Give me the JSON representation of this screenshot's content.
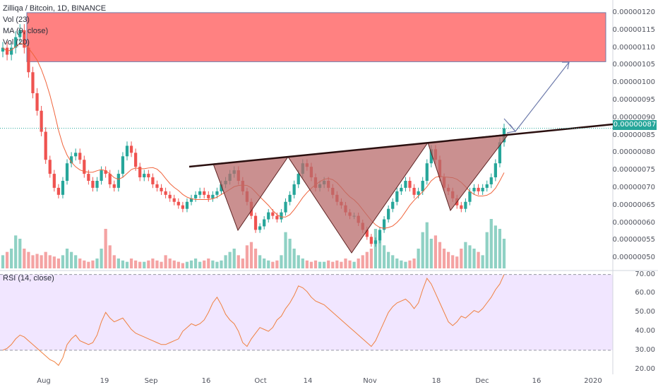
{
  "legend": {
    "symbol": "Zilliqa / Bitcoin, 1D, BINANCE",
    "vol": "Vol (23)",
    "ma": "MA (9, close)",
    "vol2": "Vol (20)",
    "rsi": "RSI (14, close)"
  },
  "last_price": "0.00000087",
  "colors": {
    "up": "#26a69a",
    "down": "#ef5350",
    "vol_up": "#8fd1c4",
    "vol_down": "#f4a3a3",
    "ma": "#f0643c",
    "resistance_zone": "#ff6b6b",
    "pattern_fill": "#b86b6b",
    "neckline": "#5d2222",
    "rsi_line": "#f08040",
    "rsi_band": "#f1e6ff",
    "arrow": "#6e7bab"
  },
  "chart_data": {
    "type": "candlestick",
    "title": "Zilliqa / Bitcoin, 1D, BINANCE",
    "price_axis": {
      "ticks": [
        "0.00000120",
        "0.00000115",
        "0.00000110",
        "0.00000105",
        "0.00000100",
        "0.00000095",
        "0.00000090",
        "0.00000085",
        "0.00000080",
        "0.00000075",
        "0.00000070",
        "0.00000065",
        "0.00000060",
        "0.00000055",
        "0.00000050"
      ],
      "range": [
        4.7e-07,
        1.22e-06
      ]
    },
    "rsi_axis": {
      "ticks": [
        "70.00",
        "60.00",
        "50.00",
        "40.00",
        "30.00",
        "20.00"
      ],
      "range": [
        18,
        71
      ],
      "overbought": 70,
      "oversold": 30
    },
    "x_ticks": [
      "Aug",
      "19",
      "Sep",
      "16",
      "Oct",
      "14",
      "Nov",
      "18",
      "Dec",
      "16",
      "2020"
    ],
    "closes": [
      1.1,
      1.08,
      1.1,
      1.13,
      1.15,
      1.1,
      1.03,
      0.97,
      0.92,
      0.86,
      0.78,
      0.74,
      0.7,
      0.68,
      0.72,
      0.77,
      0.79,
      0.8,
      0.78,
      0.74,
      0.72,
      0.7,
      0.72,
      0.75,
      0.74,
      0.71,
      0.7,
      0.74,
      0.79,
      0.82,
      0.8,
      0.76,
      0.73,
      0.74,
      0.73,
      0.71,
      0.7,
      0.69,
      0.68,
      0.67,
      0.66,
      0.65,
      0.64,
      0.66,
      0.67,
      0.68,
      0.69,
      0.68,
      0.67,
      0.68,
      0.69,
      0.71,
      0.72,
      0.74,
      0.75,
      0.72,
      0.69,
      0.66,
      0.62,
      0.58,
      0.59,
      0.61,
      0.63,
      0.62,
      0.61,
      0.63,
      0.66,
      0.68,
      0.71,
      0.74,
      0.77,
      0.76,
      0.73,
      0.7,
      0.71,
      0.72,
      0.7,
      0.68,
      0.66,
      0.65,
      0.63,
      0.62,
      0.62,
      0.6,
      0.58,
      0.56,
      0.54,
      0.55,
      0.58,
      0.61,
      0.64,
      0.66,
      0.69,
      0.7,
      0.72,
      0.7,
      0.68,
      0.69,
      0.72,
      0.77,
      0.81,
      0.78,
      0.73,
      0.7,
      0.69,
      0.67,
      0.65,
      0.64,
      0.66,
      0.69,
      0.7,
      0.69,
      0.7,
      0.71,
      0.73,
      0.77,
      0.83,
      0.87
    ],
    "volumes": [
      0.2,
      0.25,
      0.3,
      0.5,
      0.45,
      0.3,
      0.25,
      0.2,
      0.22,
      0.2,
      0.25,
      0.2,
      0.18,
      0.15,
      0.2,
      0.3,
      0.25,
      0.2,
      0.15,
      0.12,
      0.1,
      0.12,
      0.15,
      0.3,
      0.6,
      0.35,
      0.2,
      0.15,
      0.12,
      0.1,
      0.15,
      0.12,
      0.1,
      0.1,
      0.12,
      0.15,
      0.12,
      0.1,
      0.2,
      0.15,
      0.12,
      0.1,
      0.08,
      0.1,
      0.12,
      0.15,
      0.1,
      0.12,
      0.15,
      0.12,
      0.1,
      0.12,
      0.2,
      0.25,
      0.3,
      0.2,
      0.15,
      0.35,
      0.4,
      0.3,
      0.2,
      0.15,
      0.12,
      0.1,
      0.12,
      0.2,
      0.55,
      0.45,
      0.3,
      0.2,
      0.15,
      0.12,
      0.1,
      0.12,
      0.1,
      0.1,
      0.12,
      0.1,
      0.12,
      0.1,
      0.15,
      0.12,
      0.1,
      0.15,
      0.2,
      0.25,
      0.3,
      0.6,
      0.5,
      0.35,
      0.25,
      0.2,
      0.15,
      0.12,
      0.1,
      0.12,
      0.15,
      0.3,
      0.55,
      0.7,
      0.45,
      0.5,
      0.4,
      0.3,
      0.25,
      0.2,
      0.18,
      0.3,
      0.4,
      0.35,
      0.3,
      0.25,
      0.2,
      0.55,
      0.75,
      0.65,
      0.6,
      0.45
    ],
    "rsi": [
      30,
      31,
      33,
      36,
      38,
      37,
      35,
      33,
      31,
      29,
      27,
      25,
      24,
      22,
      26,
      33,
      36,
      38,
      35,
      34,
      33,
      34,
      38,
      45,
      50,
      47,
      45,
      46,
      47,
      44,
      41,
      39,
      38,
      37,
      36,
      35,
      34,
      33,
      33,
      34,
      35,
      36,
      40,
      42,
      44,
      43,
      44,
      46,
      50,
      55,
      58,
      54,
      49,
      46,
      44,
      40,
      34,
      32,
      36,
      39,
      42,
      41,
      40,
      42,
      46,
      48,
      52,
      55,
      59,
      64,
      63,
      61,
      58,
      56,
      55,
      54,
      52,
      50,
      48,
      46,
      44,
      42,
      40,
      38,
      36,
      34,
      32,
      35,
      40,
      45,
      50,
      53,
      55,
      56,
      57,
      55,
      52,
      55,
      62,
      68,
      65,
      60,
      55,
      50,
      45,
      43,
      45,
      48,
      47,
      49,
      51,
      50,
      52,
      55,
      58,
      62,
      65,
      70
    ],
    "annotations": {
      "pattern": "inverse head and shoulders",
      "neckline": "ascending",
      "target_zone": [
        1.06e-06,
        1.2e-06
      ]
    }
  }
}
